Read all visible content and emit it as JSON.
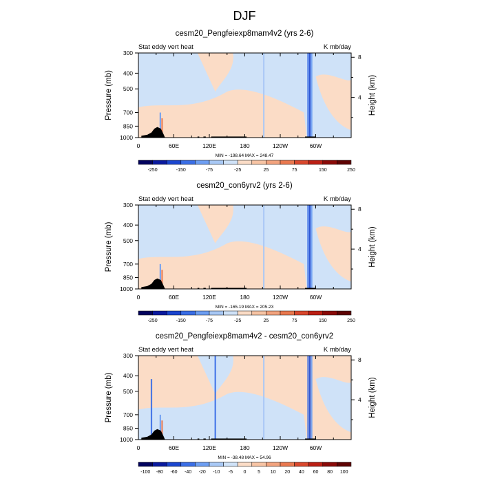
{
  "page_title": "DJF",
  "chart_data": [
    {
      "type": "heatmap",
      "title": "cesm20_Pengfeiexp8mam4v2 (yrs 2-6)",
      "left_label": "Stat eddy vert heat",
      "right_label": "K mb/day",
      "ylabel": "Pressure (mb)",
      "ylabel_right": "Height (km)",
      "x_ticks": [
        "0",
        "60E",
        "120E",
        "180",
        "120W",
        "60W"
      ],
      "x_tick_lon": [
        0,
        60,
        120,
        180,
        240,
        300
      ],
      "xlim": [
        0,
        360
      ],
      "y_ticks": [
        "300",
        "400",
        "500",
        "700",
        "850",
        "1000"
      ],
      "y_tick_p": [
        300,
        400,
        500,
        700,
        850,
        1000
      ],
      "ylim": [
        1000,
        300
      ],
      "y_right_ticks": [
        "8",
        "4"
      ],
      "y_right_km": [
        8,
        4
      ],
      "minmax": "MIN = -198.64   MAX = 248.47",
      "colorbar_labels": [
        "-250",
        "-150",
        "-75",
        "-25",
        "25",
        "75",
        "150",
        "250"
      ],
      "colorbar_colors": [
        "#02035e",
        "#0a1a9e",
        "#1b46cf",
        "#3a6ee6",
        "#6d9ef2",
        "#a8c8f5",
        "#cfe2f8",
        "#fbdcc6",
        "#f7c4a4",
        "#f2a37e",
        "#e9784f",
        "#d9482d",
        "#bb1f14",
        "#8a0a08",
        "#5e0303"
      ],
      "field_note": "mostly weak values: light blue aloft, light orange near surface; strong dipoles near 40E and 290E"
    },
    {
      "type": "heatmap",
      "title": "cesm20_con6yrv2 (yrs 2-6)",
      "left_label": "Stat eddy vert heat",
      "right_label": "K mb/day",
      "ylabel": "Pressure (mb)",
      "ylabel_right": "Height (km)",
      "x_ticks": [
        "0",
        "60E",
        "120E",
        "180",
        "120W",
        "60W"
      ],
      "x_tick_lon": [
        0,
        60,
        120,
        180,
        240,
        300
      ],
      "xlim": [
        0,
        360
      ],
      "y_ticks": [
        "300",
        "400",
        "500",
        "700",
        "850",
        "1000"
      ],
      "y_tick_p": [
        300,
        400,
        500,
        700,
        850,
        1000
      ],
      "ylim": [
        1000,
        300
      ],
      "y_right_ticks": [
        "8",
        "4"
      ],
      "y_right_km": [
        8,
        4
      ],
      "minmax": "MIN = -165.19   MAX = 205.23",
      "colorbar_labels": [
        "-250",
        "-150",
        "-75",
        "-25",
        "25",
        "75",
        "150",
        "250"
      ],
      "colorbar_colors": [
        "#02035e",
        "#0a1a9e",
        "#1b46cf",
        "#3a6ee6",
        "#6d9ef2",
        "#a8c8f5",
        "#cfe2f8",
        "#fbdcc6",
        "#f7c4a4",
        "#f2a37e",
        "#e9784f",
        "#d9482d",
        "#bb1f14",
        "#8a0a08",
        "#5e0303"
      ]
    },
    {
      "type": "heatmap",
      "title": "cesm20_Pengfeiexp8mam4v2 - cesm20_con6yrv2",
      "left_label": "Stat eddy vert heat",
      "right_label": "K mb/day",
      "ylabel": "Pressure (mb)",
      "ylabel_right": "Height (km)",
      "x_ticks": [
        "0",
        "60E",
        "120E",
        "180",
        "120W",
        "60W"
      ],
      "x_tick_lon": [
        0,
        60,
        120,
        180,
        240,
        300
      ],
      "xlim": [
        0,
        360
      ],
      "y_ticks": [
        "300",
        "400",
        "500",
        "700",
        "850",
        "1000"
      ],
      "y_tick_p": [
        300,
        400,
        500,
        700,
        850,
        1000
      ],
      "ylim": [
        1000,
        300
      ],
      "y_right_ticks": [
        "8",
        "4"
      ],
      "y_right_km": [
        8,
        4
      ],
      "minmax": "MIN = -38.48   MAX = 54.96",
      "colorbar_labels": [
        "-100",
        "-80",
        "-60",
        "-40",
        "-20",
        "-10",
        "-5",
        "0",
        "5",
        "10",
        "20",
        "40",
        "60",
        "80",
        "100"
      ],
      "colorbar_colors": [
        "#02035e",
        "#0a1a9e",
        "#1b46cf",
        "#3a6ee6",
        "#6d9ef2",
        "#a8c8f5",
        "#cfe2f8",
        "#fbdcc6",
        "#f7c4a4",
        "#f2a37e",
        "#e9784f",
        "#d9482d",
        "#bb1f14",
        "#8a0a08",
        "#5e0303"
      ]
    }
  ]
}
